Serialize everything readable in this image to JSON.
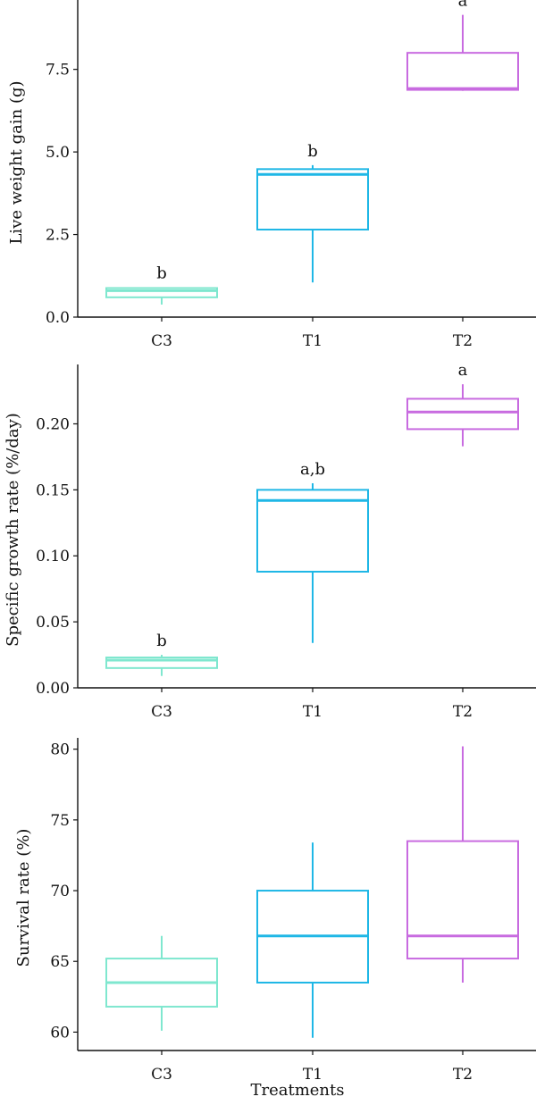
{
  "x_label": "Treatments",
  "colors": {
    "C3": "#7fe7cf",
    "T1": "#1fb7e6",
    "T2": "#c86be0"
  },
  "chart_data": [
    {
      "type": "box",
      "ylabel": "Live weight gain (g)",
      "categories": [
        "C3",
        "T1",
        "T2"
      ],
      "ylim": [
        0,
        9.6
      ],
      "yticks": [
        "0.0",
        "2.5",
        "5.0",
        "7.5"
      ],
      "ytick_values": [
        0,
        2.5,
        5.0,
        7.5
      ],
      "boxes": [
        {
          "name": "C3",
          "min": 0.38,
          "q1": 0.6,
          "median": 0.8,
          "q3": 0.88,
          "max": 0.9,
          "label": "b"
        },
        {
          "name": "T1",
          "min": 1.05,
          "q1": 2.65,
          "median": 4.32,
          "q3": 4.48,
          "max": 4.6,
          "label": "b"
        },
        {
          "name": "T2",
          "min": 6.85,
          "q1": 6.88,
          "median": 6.92,
          "q3": 8.0,
          "max": 9.15,
          "label": "a"
        }
      ]
    },
    {
      "type": "box",
      "ylabel": "Specific growth rate (%/day)",
      "categories": [
        "C3",
        "T1",
        "T2"
      ],
      "ylim": [
        0,
        0.245
      ],
      "yticks": [
        "0.00",
        "0.05",
        "0.10",
        "0.15",
        "0.20"
      ],
      "ytick_values": [
        0,
        0.05,
        0.1,
        0.15,
        0.2
      ],
      "boxes": [
        {
          "name": "C3",
          "min": 0.009,
          "q1": 0.015,
          "median": 0.021,
          "q3": 0.023,
          "max": 0.025,
          "label": "b"
        },
        {
          "name": "T1",
          "min": 0.034,
          "q1": 0.088,
          "median": 0.142,
          "q3": 0.15,
          "max": 0.155,
          "label": "a,b"
        },
        {
          "name": "T2",
          "min": 0.183,
          "q1": 0.196,
          "median": 0.209,
          "q3": 0.219,
          "max": 0.23,
          "label": "a"
        }
      ]
    },
    {
      "type": "box",
      "ylabel": "Survival rate (%)",
      "categories": [
        "C3",
        "T1",
        "T2"
      ],
      "ylim": [
        58.7,
        80.8
      ],
      "yticks": [
        "60",
        "65",
        "70",
        "75",
        "80"
      ],
      "ytick_values": [
        60,
        65,
        70,
        75,
        80
      ],
      "boxes": [
        {
          "name": "C3",
          "min": 60.1,
          "q1": 61.8,
          "median": 63.5,
          "q3": 65.2,
          "max": 66.8,
          "label": ""
        },
        {
          "name": "T1",
          "min": 59.6,
          "q1": 63.5,
          "median": 66.8,
          "q3": 70.0,
          "max": 73.4,
          "label": ""
        },
        {
          "name": "T2",
          "min": 63.5,
          "q1": 65.2,
          "median": 66.8,
          "q3": 73.5,
          "max": 80.2,
          "label": ""
        }
      ]
    }
  ]
}
